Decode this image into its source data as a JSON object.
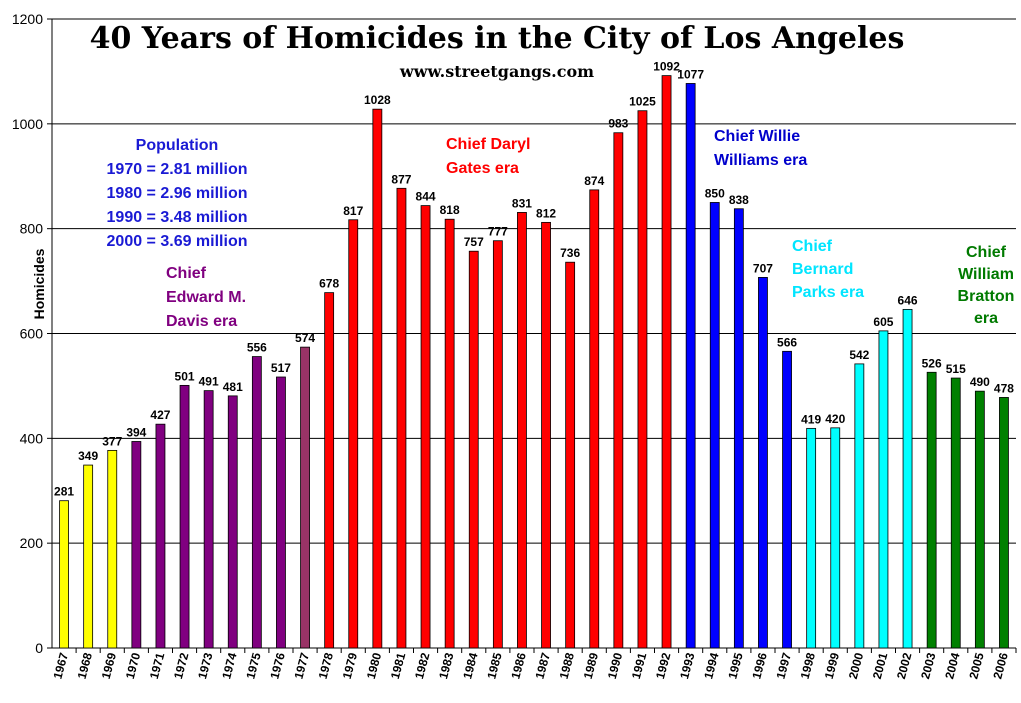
{
  "chart_data": {
    "type": "bar",
    "title": "40 Years of Homicides in the City of Los Angeles",
    "subtitle": "www.streetgangs.com",
    "xlabel": "",
    "ylabel": "Homicides",
    "ylim": [
      0,
      1200
    ],
    "yticks": [
      0,
      200,
      400,
      600,
      800,
      1000,
      1200
    ],
    "grid": true,
    "legend": "none",
    "categories": [
      "1967",
      "1968",
      "1969",
      "1970",
      "1971",
      "1972",
      "1973",
      "1974",
      "1975",
      "1976",
      "1977",
      "1978",
      "1979",
      "1980",
      "1981",
      "1982",
      "1983",
      "1984",
      "1985",
      "1986",
      "1987",
      "1988",
      "1989",
      "1990",
      "1991",
      "1992",
      "1993",
      "1994",
      "1995",
      "1996",
      "1997",
      "1998",
      "1999",
      "2000",
      "2001",
      "2002",
      "2003",
      "2004",
      "2005",
      "2006"
    ],
    "values": [
      281,
      349,
      377,
      394,
      427,
      501,
      491,
      481,
      556,
      517,
      574,
      678,
      817,
      1028,
      877,
      844,
      818,
      757,
      777,
      831,
      812,
      736,
      874,
      983,
      1025,
      1092,
      1077,
      850,
      838,
      707,
      566,
      419,
      420,
      542,
      605,
      646,
      526,
      515,
      490,
      478
    ],
    "bar_colors": [
      "#ffff00",
      "#ffff00",
      "#ffff00",
      "#800080",
      "#800080",
      "#800080",
      "#800080",
      "#800080",
      "#800080",
      "#800080",
      "#993366",
      "#ff0000",
      "#ff0000",
      "#ff0000",
      "#ff0000",
      "#ff0000",
      "#ff0000",
      "#ff0000",
      "#ff0000",
      "#ff0000",
      "#ff0000",
      "#ff0000",
      "#ff0000",
      "#ff0000",
      "#ff0000",
      "#ff0000",
      "#0000ff",
      "#0000ff",
      "#0000ff",
      "#0000ff",
      "#0000ff",
      "#00ffff",
      "#00ffff",
      "#00ffff",
      "#00ffff",
      "#00ffff",
      "#008000",
      "#008000",
      "#008000",
      "#008000"
    ],
    "annotations": [
      {
        "id": "population",
        "color": "#1a1ad4",
        "lines": [
          "Population",
          "1970 = 2.81 million",
          "1980 = 2.96 million",
          "1990 = 3.48 million",
          "2000 = 3.69 million"
        ]
      },
      {
        "id": "davis",
        "color": "#800080",
        "lines": [
          "Chief",
          "Edward M.",
          "Davis era"
        ]
      },
      {
        "id": "gates",
        "color": "#ff0000",
        "lines": [
          "Chief Daryl",
          "Gates era"
        ]
      },
      {
        "id": "williams",
        "color": "#0000cc",
        "lines": [
          "Chief Willie",
          "Williams era"
        ]
      },
      {
        "id": "parks",
        "color": "#00e5ff",
        "lines": [
          "Chief",
          "Bernard",
          "Parks era"
        ]
      },
      {
        "id": "bratton",
        "color": "#007a00",
        "lines": [
          "Chief",
          "William",
          "Bratton",
          "era"
        ]
      }
    ]
  }
}
